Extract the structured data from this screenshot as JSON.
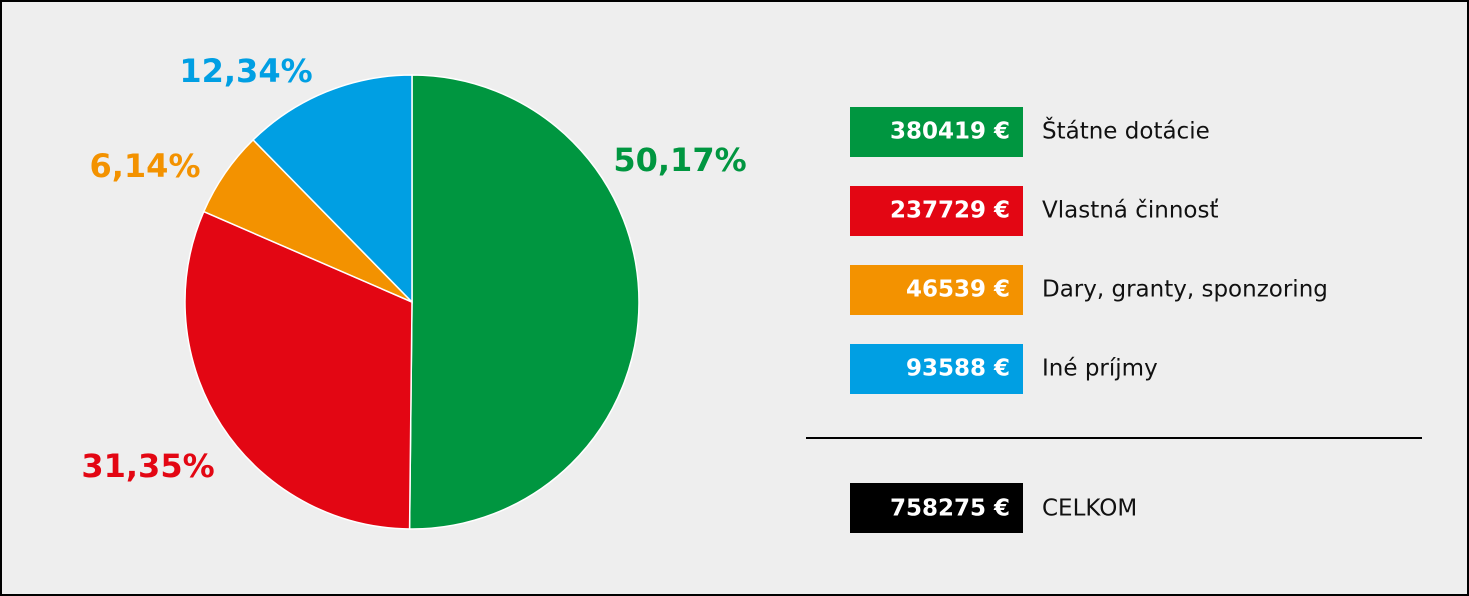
{
  "chart_data": {
    "type": "pie",
    "categories": [
      "Štátne dotácie",
      "Vlastná činnosť",
      "Dary, granty, sponzoring",
      "Iné príjmy"
    ],
    "values": [
      50.17,
      31.35,
      6.14,
      12.34
    ],
    "value_labels": [
      "50,17%",
      "31,35%",
      "6,14%",
      "12,34%"
    ],
    "colors": [
      "#009640",
      "#e30613",
      "#f39200",
      "#009fe3"
    ],
    "amounts": [
      380419,
      237729,
      46539,
      93588
    ],
    "amount_labels": [
      "380419 €",
      "237729 €",
      "46539 €",
      "93588 €"
    ],
    "total": 758275,
    "total_label": "758275 €",
    "total_name": "CELKOM",
    "total_color": "#000000"
  }
}
